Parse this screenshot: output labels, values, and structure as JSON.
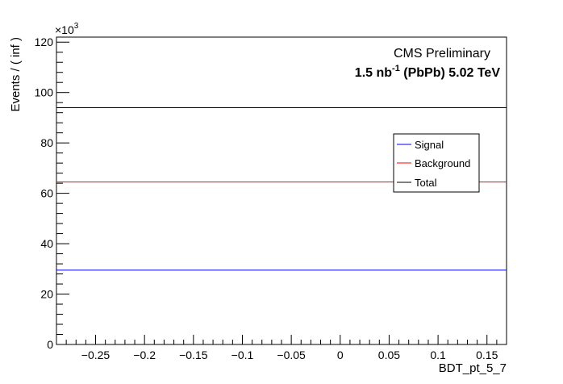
{
  "chart_data": {
    "type": "line",
    "title": "",
    "xlabel": "BDT_pt_5_7",
    "ylabel": "Events / ( inf )",
    "y_exponent_label": "×10",
    "y_exponent_power": "3",
    "xlim": [
      -0.29,
      0.17
    ],
    "ylim": [
      0,
      122
    ],
    "x_ticks": [
      -0.25,
      -0.2,
      -0.15,
      -0.1,
      -0.05,
      0,
      0.05,
      0.1,
      0.15
    ],
    "x_tick_labels": [
      "−0.25",
      "−0.2",
      "−0.15",
      "−0.1",
      "−0.05",
      "0",
      "0.05",
      "0.1",
      "0.15"
    ],
    "y_ticks": [
      0,
      20,
      40,
      60,
      80,
      100,
      120
    ],
    "y_tick_labels": [
      "0",
      "20",
      "40",
      "60",
      "80",
      "100",
      "120"
    ],
    "grid": false,
    "legend_position": "right",
    "series": [
      {
        "name": "Signal",
        "color": "#0000ff",
        "x": [
          -0.29,
          0.17
        ],
        "y": [
          29.5,
          29.5
        ]
      },
      {
        "name": "Background",
        "color": "#ff0000",
        "x": [
          -0.29,
          0.17
        ],
        "y": [
          64.5,
          64.5
        ]
      },
      {
        "name": "Total",
        "color": "#000000",
        "x": [
          -0.29,
          0.17
        ],
        "y": [
          94.0,
          94.0
        ]
      }
    ],
    "annotations": {
      "experiment": "CMS Preliminary",
      "lumi_value": "1.5 nb",
      "lumi_power": "-1",
      "lumi_rest": " (PbPb) 5.02 TeV"
    }
  }
}
